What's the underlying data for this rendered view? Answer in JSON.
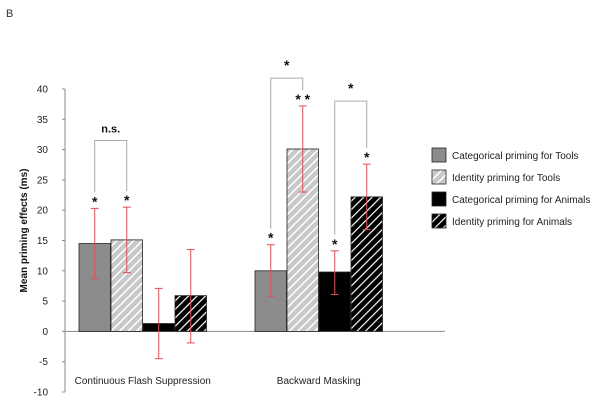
{
  "panel_label": "B",
  "chart_data": {
    "type": "bar",
    "ylabel": "Mean priming effects (ms)",
    "xlabel": "",
    "ylim": [
      -10,
      40
    ],
    "yticks": [
      -10,
      -5,
      0,
      5,
      10,
      15,
      20,
      25,
      30,
      35,
      40
    ],
    "grid": false,
    "legend_position": "right",
    "categories": [
      "Continuous Flash Suppression",
      "Backward Masking"
    ],
    "series": [
      {
        "name": "Categorical priming for Tools",
        "fill": "#8c8c8c",
        "pattern": "solid",
        "values": [
          14.5,
          10.0
        ],
        "err_low": [
          8.7,
          5.8
        ],
        "err_high": [
          20.3,
          14.3
        ],
        "stars": [
          "*",
          "*"
        ]
      },
      {
        "name": "Identity priming for Tools",
        "fill": "#d8d8d8",
        "pattern": "hatch-light",
        "values": [
          15.1,
          30.1
        ],
        "err_low": [
          9.7,
          23.0
        ],
        "err_high": [
          20.5,
          37.2
        ],
        "stars": [
          "*",
          "* *"
        ]
      },
      {
        "name": "Categorical priming for Animals",
        "fill": "#000000",
        "pattern": "solid",
        "values": [
          1.3,
          9.8
        ],
        "err_low": [
          -4.5,
          6.1
        ],
        "err_high": [
          7.1,
          13.3
        ],
        "stars": [
          "",
          "*"
        ]
      },
      {
        "name": "Identity priming for Animals",
        "fill": "#000000",
        "pattern": "hatch-dark",
        "values": [
          5.9,
          22.2
        ],
        "err_low": [
          -1.9,
          16.8
        ],
        "err_high": [
          13.5,
          27.6
        ],
        "stars": [
          "",
          "*"
        ]
      }
    ],
    "error_bar_color": "#e05050",
    "annotations": [
      {
        "text": "n.s.",
        "group": 0,
        "from_series": 0,
        "to_series": 1,
        "y": 31.5
      },
      {
        "text": "*",
        "group": 1,
        "from_series": 0,
        "to_series": 1,
        "y": 41.8
      },
      {
        "text": "*",
        "group": 1,
        "from_series": 2,
        "to_series": 3,
        "y": 38.0
      }
    ]
  }
}
